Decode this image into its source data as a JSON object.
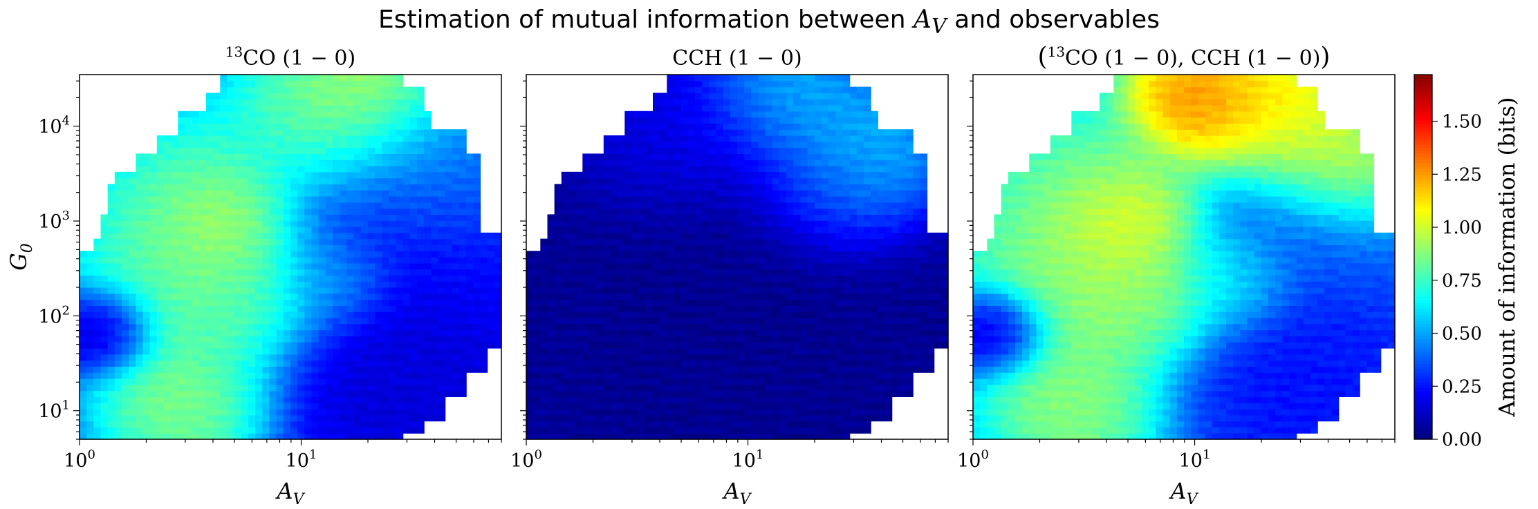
{
  "figure": {
    "suptitle_pre": "Estimation of mutual information between ",
    "suptitle_var": "A",
    "suptitle_sub": "V",
    "suptitle_post": " and observables"
  },
  "colorbar": {
    "label": "Amount of information (bits)",
    "ticks": [
      "0.00",
      "0.25",
      "0.50",
      "0.75",
      "1.00",
      "1.25",
      "1.50"
    ],
    "tick_values": [
      0,
      0.25,
      0.5,
      0.75,
      1.0,
      1.25,
      1.5
    ],
    "vmin": 0,
    "vmax": 1.72,
    "colormap": "jet"
  },
  "chart_data": [
    {
      "type": "heatmap",
      "title_parts": {
        "sup": "13",
        "main": "CO (1 − 0)"
      },
      "xlabel": "A",
      "xlabel_sub": "V",
      "ylabel": "G",
      "ylabel_sub": "0",
      "xscale": "log",
      "yscale": "log",
      "xlim": [
        1,
        80
      ],
      "ylim": [
        5,
        35000
      ],
      "xticks": [
        {
          "base": "10",
          "exp": "0"
        },
        {
          "base": "10",
          "exp": "1"
        }
      ],
      "yticks": [
        {
          "base": "10",
          "exp": "1"
        },
        {
          "base": "10",
          "exp": "2"
        },
        {
          "base": "10",
          "exp": "3"
        },
        {
          "base": "10",
          "exp": "4"
        }
      ],
      "grid_cells": "60x60 log-spaced bins over xlim × ylim",
      "blobs": [
        {
          "x": 1.3,
          "y": 70,
          "value": 0.02,
          "spread": 0.25
        },
        {
          "x": 3.0,
          "y": 300,
          "value": 0.88,
          "spread": 0.55
        },
        {
          "x": 4.2,
          "y": 1000,
          "value": 1.08,
          "spread": 0.35
        },
        {
          "x": 3.0,
          "y": 12,
          "value": 0.95,
          "spread": 0.45
        },
        {
          "x": 3.0,
          "y": 2000,
          "value": 0.8,
          "spread": 0.5
        },
        {
          "x": 5.5,
          "y": 150,
          "value": 0.85,
          "spread": 0.4
        },
        {
          "x": 20.0,
          "y": 22000,
          "value": 1.1,
          "spread": 0.45
        },
        {
          "x": 12.0,
          "y": 12000,
          "value": 0.85,
          "spread": 0.5
        },
        {
          "x": 35.0,
          "y": 1200,
          "value": 0.2,
          "spread": 0.7
        },
        {
          "x": 30.0,
          "y": 20,
          "value": 0.12,
          "spread": 0.7
        },
        {
          "x": 14.0,
          "y": 250,
          "value": 0.55,
          "spread": 0.3
        },
        {
          "x": 40.0,
          "y": 4000,
          "value": 0.55,
          "spread": 0.5
        }
      ],
      "base_value": 0.3
    },
    {
      "type": "heatmap",
      "title_parts": {
        "sup": "",
        "main": "CCH (1 − 0)"
      },
      "xlabel": "A",
      "xlabel_sub": "V",
      "ylabel": "",
      "ylabel_sub": "",
      "xscale": "log",
      "yscale": "log",
      "xlim": [
        1,
        80
      ],
      "ylim": [
        5,
        35000
      ],
      "xticks": [
        {
          "base": "10",
          "exp": "0"
        },
        {
          "base": "10",
          "exp": "1"
        }
      ],
      "yticks": [],
      "grid_cells": "60x60 log-spaced bins over xlim × ylim",
      "blobs": [
        {
          "x": 15.0,
          "y": 22000,
          "value": 0.6,
          "spread": 0.45
        },
        {
          "x": 35.0,
          "y": 5000,
          "value": 0.65,
          "spread": 0.4
        },
        {
          "x": 25.0,
          "y": 2000,
          "value": 0.4,
          "spread": 0.4
        },
        {
          "x": 5.0,
          "y": 8000,
          "value": 0.2,
          "spread": 0.5
        },
        {
          "x": 10.0,
          "y": 100,
          "value": 0.02,
          "spread": 1.0
        }
      ],
      "base_value": 0.05
    },
    {
      "type": "heatmap",
      "title_parts": {
        "sup": "13",
        "main": "CO (1 − 0), CCH (1 − 0)"
      },
      "title_paren": true,
      "xlabel": "A",
      "xlabel_sub": "V",
      "ylabel": "",
      "ylabel_sub": "",
      "xscale": "log",
      "yscale": "log",
      "xlim": [
        1,
        80
      ],
      "ylim": [
        5,
        35000
      ],
      "xticks": [
        {
          "base": "10",
          "exp": "0"
        },
        {
          "base": "10",
          "exp": "1"
        }
      ],
      "yticks": [],
      "grid_cells": "60x60 log-spaced bins over xlim × ylim",
      "blobs": [
        {
          "x": 1.3,
          "y": 70,
          "value": 0.02,
          "spread": 0.25
        },
        {
          "x": 3.0,
          "y": 300,
          "value": 0.95,
          "spread": 0.55
        },
        {
          "x": 4.5,
          "y": 1000,
          "value": 1.2,
          "spread": 0.35
        },
        {
          "x": 3.0,
          "y": 12,
          "value": 0.95,
          "spread": 0.45
        },
        {
          "x": 3.0,
          "y": 2000,
          "value": 0.85,
          "spread": 0.5
        },
        {
          "x": 6.0,
          "y": 150,
          "value": 0.95,
          "spread": 0.4
        },
        {
          "x": 10.0,
          "y": 20000,
          "value": 1.4,
          "spread": 0.35
        },
        {
          "x": 22.0,
          "y": 20000,
          "value": 1.2,
          "spread": 0.45
        },
        {
          "x": 40.0,
          "y": 4000,
          "value": 1.05,
          "spread": 0.4
        },
        {
          "x": 28.0,
          "y": 700,
          "value": 0.35,
          "spread": 0.45
        },
        {
          "x": 30.0,
          "y": 20,
          "value": 0.2,
          "spread": 0.7
        },
        {
          "x": 15.0,
          "y": 250,
          "value": 0.7,
          "spread": 0.3
        }
      ],
      "base_value": 0.45
    }
  ]
}
